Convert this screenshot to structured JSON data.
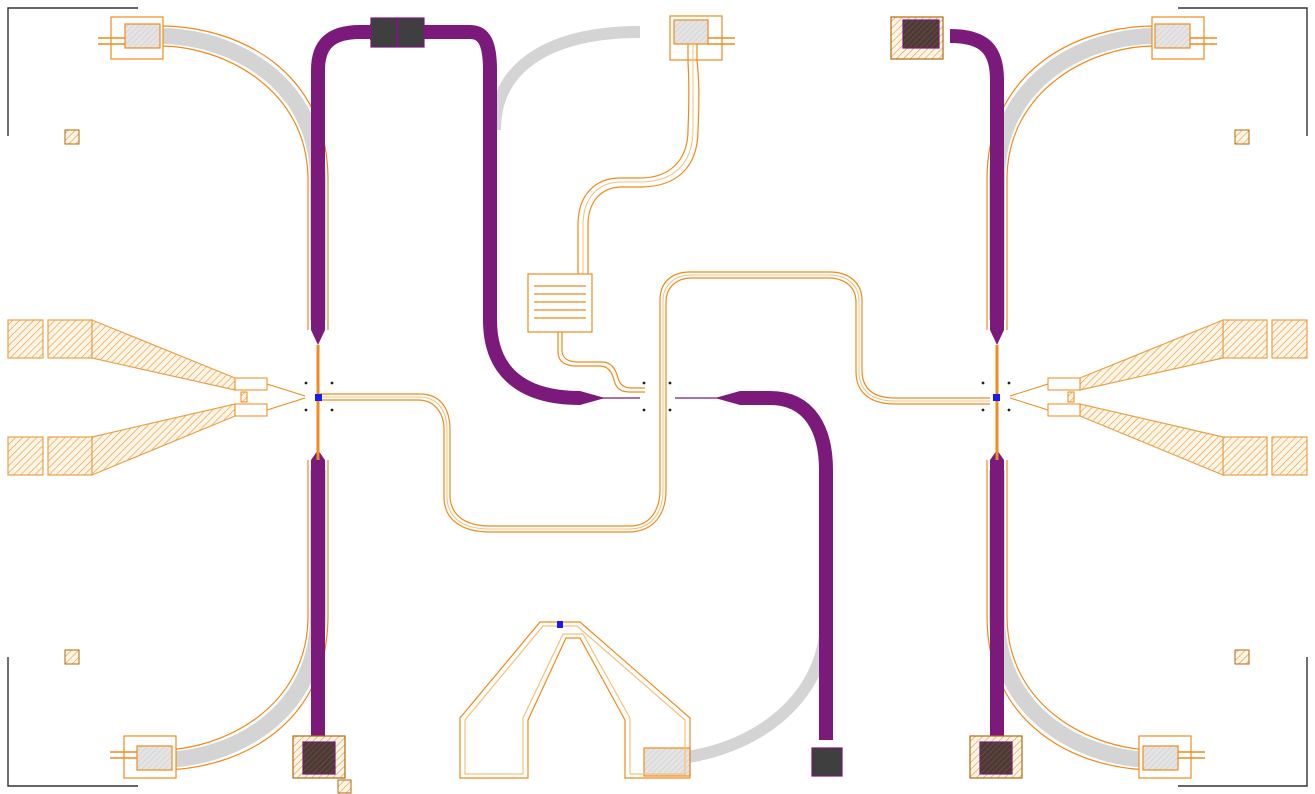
{
  "colors": {
    "background": "#ffffff",
    "orange_outline": "#f08a1c",
    "orange_hatch": "#e8a24a",
    "purple_trace": "#7b1a7b",
    "purple_edge": "#5a0e5a",
    "gray_trace": "#d9d9d9",
    "dark_pad": "#3f3f3f",
    "blue_junction": "#1a1aff",
    "corner_marks": "#333333"
  },
  "layer_names": [
    "orange-outline-layer",
    "purple-metal-layer",
    "gray-ground-layer",
    "dark-pad-layer",
    "hatched-pad-layer"
  ],
  "icons": [
    "alignment-cross-icon",
    "junction-marker-icon",
    "corner-mark-icon"
  ]
}
